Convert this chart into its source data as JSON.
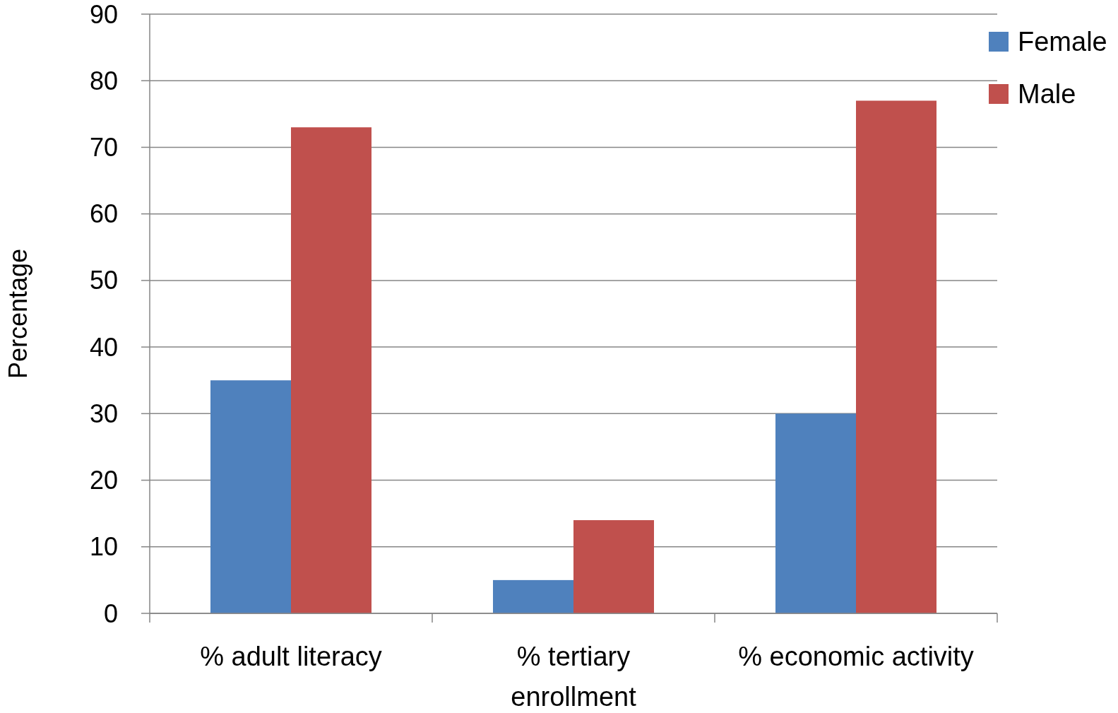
{
  "chart_data": {
    "type": "bar",
    "ylabel": "Percentage",
    "categories": [
      "% adult literacy",
      "% tertiary enrollment",
      "% economic activity"
    ],
    "series": [
      {
        "name": "Female",
        "color": "#4f81bd",
        "values": [
          35,
          5,
          30
        ]
      },
      {
        "name": "Male",
        "color": "#c0504d",
        "values": [
          73,
          14,
          77
        ]
      }
    ],
    "ylim": [
      0,
      90
    ],
    "yticks": [
      0,
      10,
      20,
      30,
      40,
      50,
      60,
      70,
      80,
      90
    ],
    "grid": "y",
    "legend": "top right"
  }
}
